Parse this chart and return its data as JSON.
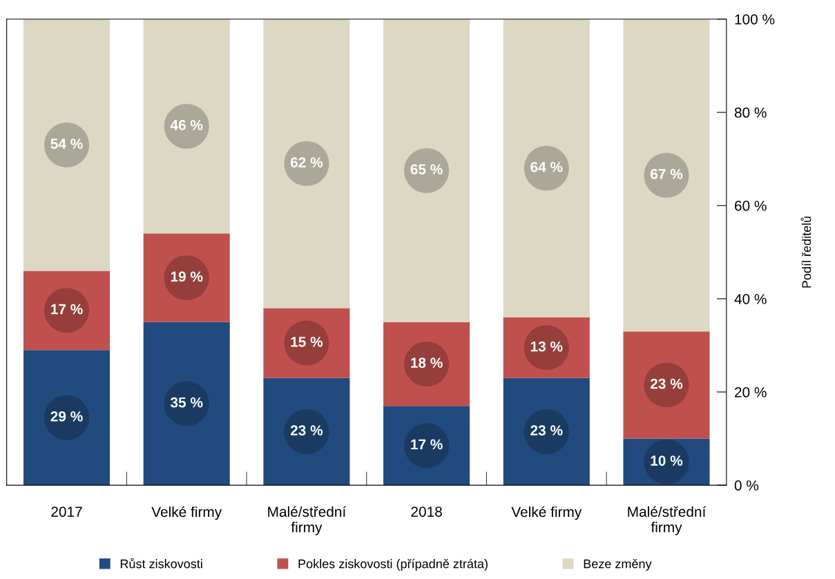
{
  "chart_data": {
    "type": "bar",
    "stacked": true,
    "ylabel": "Podíl ředitelů",
    "categories": [
      "2017",
      "Velké firmy",
      "Malé/střední firmy",
      "2018",
      "Velké firmy",
      "Malé/střední firmy"
    ],
    "series": [
      {
        "name": "Růst ziskovosti",
        "color": "#214a7e",
        "values": [
          29,
          35,
          23,
          17,
          23,
          10
        ],
        "value_labels": [
          "29 %",
          "35 %",
          "23 %",
          "17 %",
          "23 %",
          "10 %"
        ]
      },
      {
        "name": "Pokles ziskovosti (případně ztráta)",
        "color": "#c0504d",
        "values": [
          17,
          19,
          15,
          18,
          13,
          23
        ],
        "value_labels": [
          "17 %",
          "19 %",
          "15 %",
          "18 %",
          "13 %",
          "23 %"
        ]
      },
      {
        "name": "Beze změny",
        "color": "#ddd8c4",
        "values": [
          54,
          46,
          62,
          65,
          64,
          67
        ],
        "value_labels": [
          "54 %",
          "46 %",
          "62 %",
          "65 %",
          "64 %",
          "67 %"
        ]
      }
    ],
    "ylim": [
      0,
      100
    ],
    "yticks": [
      {
        "value": 0,
        "label": "0 %"
      },
      {
        "value": 20,
        "label": "20 %"
      },
      {
        "value": 40,
        "label": "40 %"
      },
      {
        "value": 60,
        "label": "60 %"
      },
      {
        "value": 80,
        "label": "80 %"
      },
      {
        "value": 100,
        "label": "100 %"
      }
    ],
    "grid": false,
    "legend": "bottom"
  }
}
